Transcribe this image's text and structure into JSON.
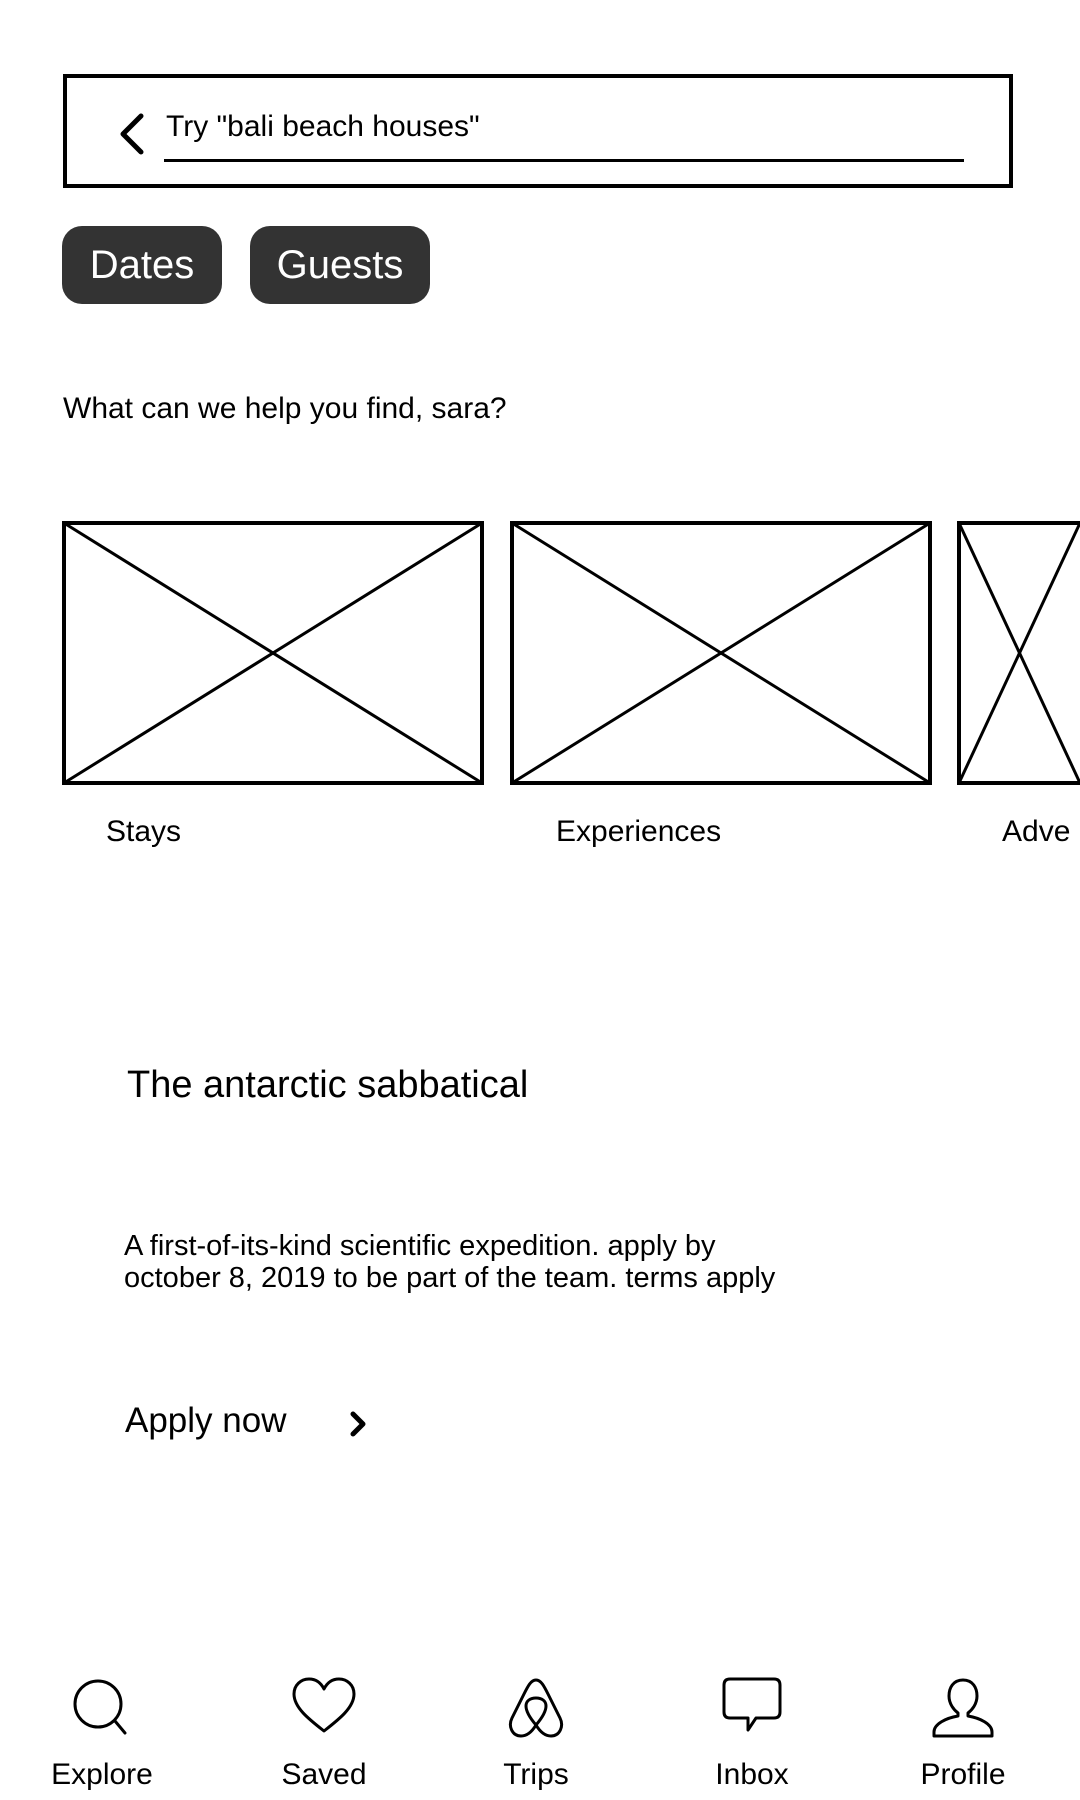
{
  "search": {
    "placeholder": "Try \"bali beach houses\""
  },
  "filters": {
    "dates_label": "Dates",
    "guests_label": "Guests"
  },
  "greeting": "What can we help you find, sara?",
  "categories": [
    {
      "label": "Stays",
      "icon": "image-placeholder"
    },
    {
      "label": "Experiences",
      "icon": "image-placeholder"
    },
    {
      "label": "Adve",
      "icon": "image-placeholder"
    }
  ],
  "promo": {
    "title": "The antarctic sabbatical",
    "description_line1": "A first-of-its-kind scientific expedition. apply by",
    "description_line2": "october 8, 2019 to be part of the team. terms apply",
    "cta_label": "Apply now",
    "cta_icon": "chevron-right-icon"
  },
  "nav": [
    {
      "label": "Explore",
      "icon": "search-icon"
    },
    {
      "label": "Saved",
      "icon": "heart-icon"
    },
    {
      "label": "Trips",
      "icon": "airbnb-logo-icon"
    },
    {
      "label": "Inbox",
      "icon": "message-icon"
    },
    {
      "label": "Profile",
      "icon": "user-icon"
    }
  ],
  "colors": {
    "pill_background": "#333333",
    "pill_text": "#ffffff",
    "stroke": "#000000"
  }
}
